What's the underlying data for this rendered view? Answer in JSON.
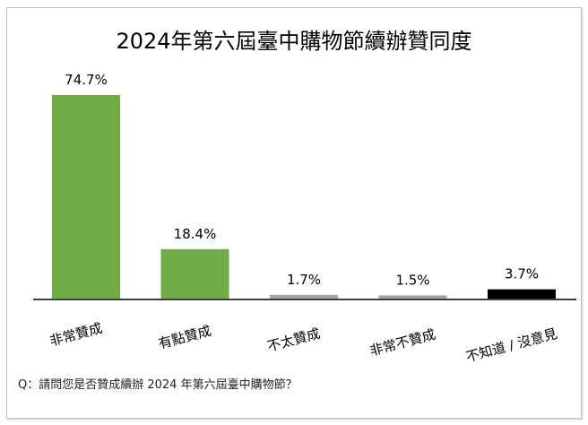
{
  "chart_data": {
    "type": "bar",
    "title": "2024年第六屆臺中購物節續辦贊同度",
    "categories": [
      "非常贊成",
      "有點贊成",
      "不太贊成",
      "非常不贊成",
      "不知道 / 沒意見"
    ],
    "values": [
      74.7,
      18.4,
      1.7,
      1.5,
      3.7
    ],
    "data_labels": [
      "74.7%",
      "18.4%",
      "1.7%",
      "1.5%",
      "3.7%"
    ],
    "colors": [
      "#70ad47",
      "#70ad47",
      "#a5a5a5",
      "#a5a5a5",
      "#000000"
    ],
    "ylim": [
      0,
      80
    ],
    "grid": false,
    "footnote": "Q：請問您是否贊成續辦 2024 年第六屆臺中購物節？"
  }
}
